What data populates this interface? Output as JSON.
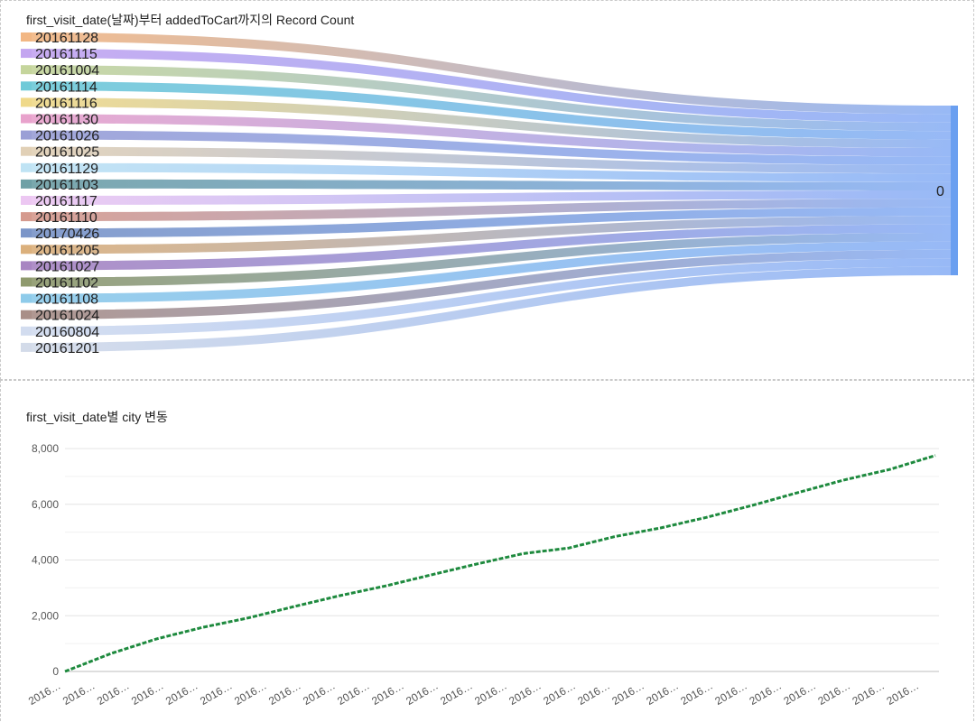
{
  "chart_data": [
    {
      "type": "sankey",
      "title": "first_visit_date(날짜)부터 addedToCart까지의 Record Count",
      "sources": [
        {
          "name": "20161128",
          "color": "#f2b784"
        },
        {
          "name": "20161115",
          "color": "#c3a5f0"
        },
        {
          "name": "20161004",
          "color": "#c5d59c"
        },
        {
          "name": "20161114",
          "color": "#6fcad8"
        },
        {
          "name": "20161116",
          "color": "#efd98a"
        },
        {
          "name": "20161130",
          "color": "#e8a2cc"
        },
        {
          "name": "20161026",
          "color": "#9a9fd6"
        },
        {
          "name": "20161025",
          "color": "#e1d0b6"
        },
        {
          "name": "20161129",
          "color": "#bfe3f4"
        },
        {
          "name": "20161103",
          "color": "#6fa0a6"
        },
        {
          "name": "20161117",
          "color": "#ecc7f2"
        },
        {
          "name": "20161110",
          "color": "#d59a8e"
        },
        {
          "name": "20170426",
          "color": "#7b95c8"
        },
        {
          "name": "20161205",
          "color": "#dbb07c"
        },
        {
          "name": "20161027",
          "color": "#a885c2"
        },
        {
          "name": "20161102",
          "color": "#8f9a6e"
        },
        {
          "name": "20161108",
          "color": "#8ecbea"
        },
        {
          "name": "20161024",
          "color": "#a98f88"
        },
        {
          "name": "20160804",
          "color": "#d2dcef"
        },
        {
          "name": "20161201",
          "color": "#d3dbe9"
        }
      ],
      "target": {
        "name": "0",
        "color": "#6a9ff0",
        "flow_color": "#8fb3f5"
      }
    },
    {
      "type": "line",
      "title": "first_visit_date별 city 변동",
      "xlabel": "",
      "ylabel": "",
      "ylim": [
        0,
        8000
      ],
      "yticks": [
        "0",
        "2,000",
        "4,000",
        "6,000",
        "8,000"
      ],
      "ytick_values": [
        0,
        2000,
        4000,
        6000,
        8000
      ],
      "x_tick_label": "2016…",
      "x_tick_count": 26,
      "line_color": "#1e8a3e",
      "points": [
        {
          "x": 0,
          "y": 0
        },
        {
          "x": 1,
          "y": 640
        },
        {
          "x": 2,
          "y": 1170
        },
        {
          "x": 3,
          "y": 1580
        },
        {
          "x": 4,
          "y": 1920
        },
        {
          "x": 5,
          "y": 2330
        },
        {
          "x": 6,
          "y": 2720
        },
        {
          "x": 7,
          "y": 3070
        },
        {
          "x": 8,
          "y": 3470
        },
        {
          "x": 9,
          "y": 3860
        },
        {
          "x": 10,
          "y": 4230
        },
        {
          "x": 11,
          "y": 4430
        },
        {
          "x": 12,
          "y": 4840
        },
        {
          "x": 13,
          "y": 5150
        },
        {
          "x": 14,
          "y": 5530
        },
        {
          "x": 15,
          "y": 5960
        },
        {
          "x": 16,
          "y": 6420
        },
        {
          "x": 17,
          "y": 6870
        },
        {
          "x": 18,
          "y": 7250
        },
        {
          "x": 19,
          "y": 7750
        }
      ]
    }
  ]
}
